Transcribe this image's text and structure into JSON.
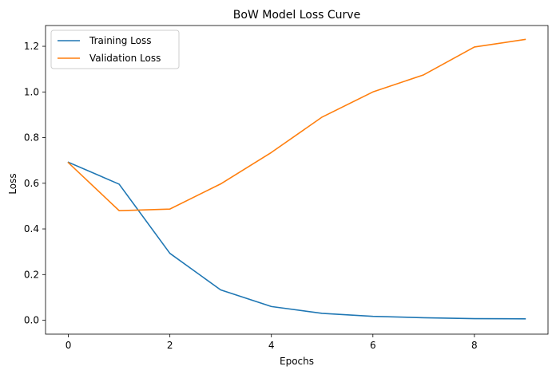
{
  "chart_data": {
    "type": "line",
    "title": "BoW Model Loss Curve",
    "xlabel": "Epochs",
    "ylabel": "Loss",
    "x": [
      0,
      1,
      2,
      3,
      4,
      5,
      6,
      7,
      8,
      9
    ],
    "xlim": [
      -0.45,
      9.45
    ],
    "ylim": [
      -0.061,
      1.291
    ],
    "x_ticks": [
      0,
      2,
      4,
      6,
      8
    ],
    "x_tick_labels": [
      "0",
      "2",
      "4",
      "6",
      "8"
    ],
    "y_ticks": [
      0.0,
      0.2,
      0.4,
      0.6,
      0.8,
      1.0,
      1.2
    ],
    "y_tick_labels": [
      "0.0",
      "0.2",
      "0.4",
      "0.6",
      "0.8",
      "1.0",
      "1.2"
    ],
    "grid": false,
    "legend_position": "top-left",
    "series": [
      {
        "name": "Training Loss",
        "color": "#1f77b4",
        "values": [
          0.692,
          0.596,
          0.293,
          0.133,
          0.06,
          0.03,
          0.017,
          0.011,
          0.007,
          0.006
        ]
      },
      {
        "name": "Validation Loss",
        "color": "#ff7f0e",
        "values": [
          0.69,
          0.48,
          0.487,
          0.597,
          0.735,
          0.89,
          1.0,
          1.075,
          1.197,
          1.23
        ]
      }
    ]
  }
}
